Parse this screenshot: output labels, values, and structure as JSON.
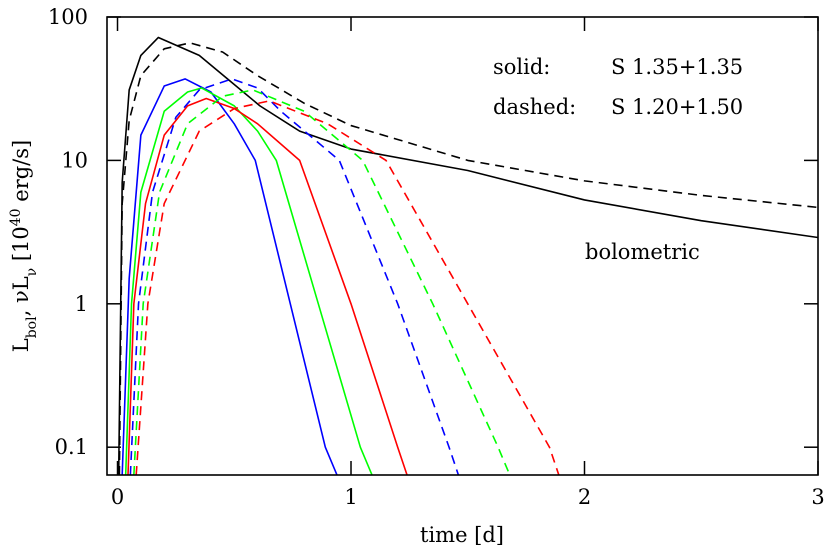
{
  "chart_data": {
    "type": "line",
    "xlabel": "time [d]",
    "ylabel": [
      "L",
      "bol",
      ", νL",
      "ν",
      " [10",
      "40",
      " erg/s]"
    ],
    "annotations": [
      "solid:",
      "S 1.35+1.35",
      "dashed:",
      "S 1.20+1.50",
      "bolometric"
    ],
    "xlim": [
      -0.045,
      3
    ],
    "xticks": [
      0,
      1,
      2,
      3
    ],
    "ylim": [
      0.064,
      100
    ],
    "yticks": [
      0.1,
      1,
      10,
      100
    ],
    "log_y": true,
    "series": [
      {
        "color": "#000000",
        "linestyle": "solid",
        "x": [
          0.005,
          0.02,
          0.05,
          0.1,
          0.175,
          0.35,
          0.48,
          0.61,
          0.78,
          1.0,
          1.5,
          2.0,
          2.5,
          3.0
        ],
        "values": [
          0.064,
          7,
          31,
          54,
          72,
          54,
          36,
          24,
          16,
          12,
          8.5,
          5.3,
          3.8,
          2.9
        ]
      },
      {
        "color": "#000000",
        "linestyle": "dashed",
        "x": [
          0.008,
          0.02,
          0.05,
          0.1,
          0.2,
          0.31,
          0.45,
          0.6,
          0.8,
          1.0,
          1.5,
          2.0,
          2.5,
          3.0
        ],
        "values": [
          0.064,
          5,
          19,
          39,
          60,
          66,
          57,
          39,
          25,
          17.5,
          10,
          7.2,
          5.7,
          4.7
        ]
      },
      {
        "color": "#0000ff",
        "linestyle": "solid",
        "x": [
          0.02,
          0.05,
          0.1,
          0.2,
          0.29,
          0.4,
          0.5,
          0.59,
          0.74,
          0.89,
          0.94
        ],
        "values": [
          0.064,
          1.5,
          15,
          33,
          37,
          30,
          18,
          10,
          1,
          0.1,
          0.064
        ]
      },
      {
        "color": "#00ff00",
        "linestyle": "solid",
        "x": [
          0.035,
          0.06,
          0.1,
          0.2,
          0.3,
          0.36,
          0.5,
          0.6,
          0.68,
          0.86,
          1.04,
          1.09
        ],
        "values": [
          0.064,
          1,
          6,
          22,
          30,
          32,
          24,
          16,
          10,
          1,
          0.1,
          0.064
        ]
      },
      {
        "color": "#ff0000",
        "linestyle": "solid",
        "x": [
          0.045,
          0.07,
          0.12,
          0.2,
          0.3,
          0.38,
          0.5,
          0.6,
          0.78,
          1.0,
          1.2,
          1.24
        ],
        "values": [
          0.064,
          1,
          5,
          15,
          24,
          27,
          23,
          18,
          10,
          1,
          0.1,
          0.064
        ]
      },
      {
        "color": "#0000ff",
        "linestyle": "dashed",
        "x": [
          0.055,
          0.09,
          0.15,
          0.25,
          0.35,
          0.49,
          0.6,
          0.7,
          0.95,
          1.2,
          1.42,
          1.46
        ],
        "values": [
          0.064,
          1,
          6,
          20,
          31,
          37,
          32,
          22,
          10,
          1,
          0.1,
          0.064
        ]
      },
      {
        "color": "#00ff00",
        "linestyle": "dashed",
        "x": [
          0.07,
          0.11,
          0.18,
          0.3,
          0.45,
          0.58,
          0.8,
          1.05,
          1.35,
          1.63,
          1.68
        ],
        "values": [
          0.064,
          1,
          6,
          18,
          28,
          31,
          22,
          10,
          1,
          0.1,
          0.064
        ]
      },
      {
        "color": "#ff0000",
        "linestyle": "dashed",
        "x": [
          0.08,
          0.13,
          0.2,
          0.35,
          0.5,
          0.65,
          0.9,
          1.15,
          1.5,
          1.85,
          1.89
        ],
        "values": [
          0.064,
          1,
          5,
          16,
          23,
          26,
          18,
          10,
          1,
          0.1,
          0.064
        ]
      }
    ]
  }
}
